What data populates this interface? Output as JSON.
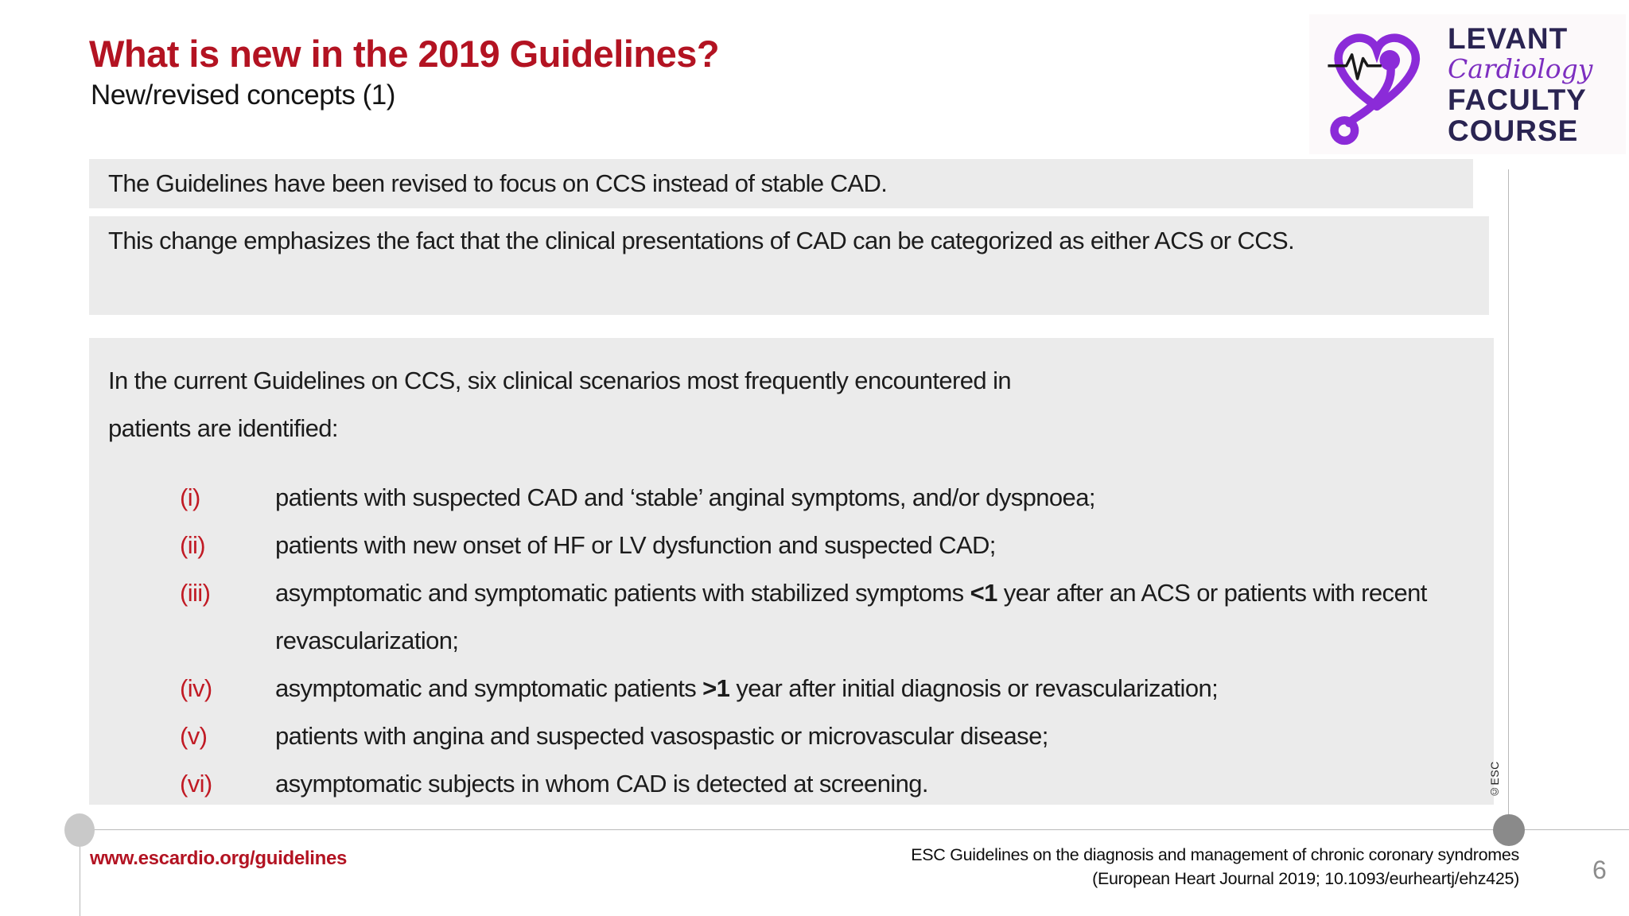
{
  "slide": {
    "title": "What is new in the 2019 Guidelines?",
    "subtitle": "New/revised concepts (1)",
    "page_number": "6"
  },
  "logo": {
    "icon": "heart-ecg-stethoscope-icon",
    "line1": "LEVANT",
    "line2": "Cardiology",
    "line3": "FACULTY",
    "line4": "COURSE"
  },
  "content": {
    "box1": "The Guidelines have been revised to focus on CCS instead of stable CAD.",
    "box2": "This change emphasizes the fact that the clinical presentations of CAD can be categorized as either ACS or CCS.",
    "box3_intro": "In the current Guidelines on CCS, six clinical scenarios most frequently encountered in patients are identified:",
    "scenarios": [
      {
        "num": "(i)",
        "parts": [
          {
            "text": "patients with suspected CAD and ‘stable’ anginal symptoms, and/or dyspnoea;",
            "bold": false
          }
        ]
      },
      {
        "num": "(ii)",
        "parts": [
          {
            "text": "patients with new onset of HF or LV dysfunction and suspected CAD;",
            "bold": false
          }
        ]
      },
      {
        "num": "(iii)",
        "parts": [
          {
            "text": "asymptomatic and symptomatic patients with stabilized symptoms ",
            "bold": false
          },
          {
            "text": "<1",
            "bold": true
          },
          {
            "text": " year after an ACS or patients with recent revascularization;",
            "bold": false
          }
        ]
      },
      {
        "num": "(iv)",
        "parts": [
          {
            "text": "asymptomatic and symptomatic patients ",
            "bold": false
          },
          {
            "text": ">1",
            "bold": true
          },
          {
            "text": " year after initial diagnosis or revascularization;",
            "bold": false
          }
        ]
      },
      {
        "num": "(v)",
        "parts": [
          {
            "text": "patients with angina and suspected vasospastic or microvascular disease;",
            "bold": false
          }
        ]
      },
      {
        "num": "(vi)",
        "parts": [
          {
            "text": "asymptomatic subjects in whom CAD is detected at screening.",
            "bold": false
          }
        ]
      }
    ]
  },
  "footer": {
    "link": "www.escardio.org/guidelines",
    "reference_line1": "ESC Guidelines on the diagnosis and management of chronic coronary syndromes",
    "reference_line2": "(European Heart Journal 2019; 10.1093/eurheartj/ehz425)",
    "copyright": "©ESC"
  },
  "colors": {
    "title_red": "#b31322",
    "numeral_red": "#c11a24",
    "box_gray": "#ebebeb",
    "logo_navy": "#2a2452",
    "logo_purple": "#8b2bd8",
    "line_gray": "#b9b9b9"
  }
}
